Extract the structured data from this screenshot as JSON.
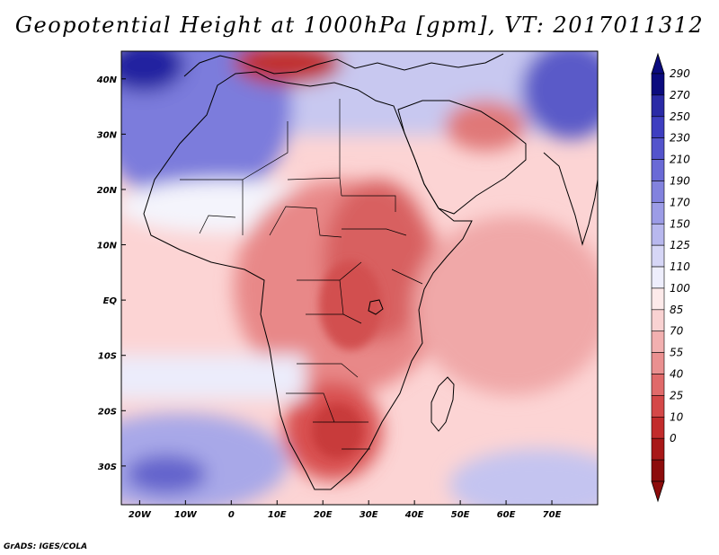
{
  "title": "Geopotential Height at 1000hPa [gpm], VT: 2017011312",
  "credit": "GrADS: IGES/COLA",
  "map": {
    "lon_range": [
      -24,
      80
    ],
    "lat_range": [
      -37,
      45
    ],
    "x_ticks": [
      {
        "lon": -20,
        "label": "20W"
      },
      {
        "lon": -10,
        "label": "10W"
      },
      {
        "lon": 0,
        "label": "0"
      },
      {
        "lon": 10,
        "label": "10E"
      },
      {
        "lon": 20,
        "label": "20E"
      },
      {
        "lon": 30,
        "label": "30E"
      },
      {
        "lon": 40,
        "label": "40E"
      },
      {
        "lon": 50,
        "label": "50E"
      },
      {
        "lon": 60,
        "label": "60E"
      },
      {
        "lon": 70,
        "label": "70E"
      }
    ],
    "y_ticks": [
      {
        "lat": 40,
        "label": "40N"
      },
      {
        "lat": 30,
        "label": "30N"
      },
      {
        "lat": 20,
        "label": "20N"
      },
      {
        "lat": 10,
        "label": "10N"
      },
      {
        "lat": 0,
        "label": "EQ"
      },
      {
        "lat": -10,
        "label": "10S"
      },
      {
        "lat": -20,
        "label": "20S"
      },
      {
        "lat": -30,
        "label": "30S"
      }
    ]
  },
  "colorbar": {
    "levels": [
      "290",
      "270",
      "250",
      "230",
      "210",
      "190",
      "170",
      "150",
      "125",
      "110",
      "100",
      "85",
      "70",
      "55",
      "40",
      "25",
      "10",
      "0"
    ],
    "colors": [
      "#0b0b7e",
      "#2a2aa6",
      "#3e3ec0",
      "#5454cc",
      "#6a6ad6",
      "#8282de",
      "#9c9ce6",
      "#b8b8ee",
      "#d6d6f6",
      "#eeeefc",
      "#fdeaea",
      "#f9d2d2",
      "#f2b0b0",
      "#ea9090",
      "#e06a6a",
      "#d44848",
      "#c22c2c",
      "#a81818",
      "#8c0c0c"
    ]
  }
}
